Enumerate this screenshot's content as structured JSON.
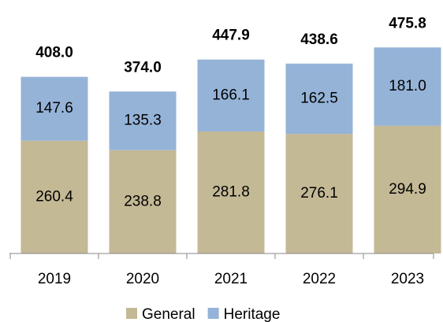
{
  "chart_data": {
    "type": "stacked_bar",
    "categories": [
      "2019",
      "2020",
      "2021",
      "2022",
      "2023"
    ],
    "series": [
      {
        "name": "General",
        "color": "#c4b995",
        "values": [
          260.4,
          238.8,
          281.8,
          276.1,
          294.9
        ]
      },
      {
        "name": "Heritage",
        "color": "#95b3d7",
        "values": [
          147.6,
          135.3,
          166.1,
          162.5,
          181.0
        ]
      }
    ],
    "totals": [
      408.0,
      374.0,
      447.9,
      438.6,
      475.8
    ],
    "total_labels": [
      "408.0",
      "374.0",
      "447.9",
      "438.6",
      "475.8"
    ],
    "series_value_labels": [
      [
        "260.4",
        "238.8",
        "281.8",
        "276.1",
        "294.9"
      ],
      [
        "147.6",
        "135.3",
        "166.1",
        "162.5",
        "181.0"
      ]
    ],
    "ylim": [
      0,
      500
    ],
    "legend": "bottom"
  }
}
